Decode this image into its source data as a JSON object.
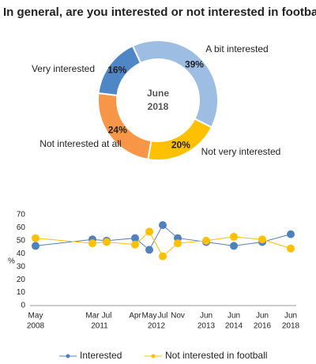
{
  "chart_data": [
    {
      "type": "donut",
      "title": "In general, are you interested or not interested in football?",
      "center_lines": [
        "June",
        "2018"
      ],
      "categories": [
        "A bit interested",
        "Not very interested",
        "Not interested at all",
        "Very interested"
      ],
      "values": [
        39,
        20,
        24,
        16
      ],
      "value_labels": [
        "39%",
        "20%",
        "24%",
        "16%"
      ],
      "colors": [
        "#9dbde3",
        "#ffc000",
        "#f79646",
        "#4f86c6"
      ]
    },
    {
      "type": "line",
      "ylabel": "%",
      "categories": [
        "May",
        "Mar",
        "Jul",
        "Apr",
        "May",
        "Jul",
        "Nov",
        "Jun",
        "Jun",
        "Jun",
        "Jun"
      ],
      "year_labels": [
        "2008",
        "2011",
        null,
        "2012",
        null,
        null,
        null,
        "2013",
        "2014",
        "2016",
        "2018"
      ],
      "series": [
        {
          "name": "Interested",
          "color": "#4f81bd",
          "values": [
            46,
            51,
            50,
            52,
            43,
            62,
            52,
            49,
            46,
            49,
            55
          ]
        },
        {
          "name": "Not interested in football",
          "color": "#ffc000",
          "values": [
            52,
            48,
            49,
            47,
            57,
            38,
            48,
            50,
            53,
            51,
            44
          ]
        }
      ],
      "ylim": [
        0,
        70
      ],
      "yticks": [
        0,
        10,
        20,
        30,
        40,
        50,
        60,
        70
      ],
      "grid": false
    }
  ]
}
